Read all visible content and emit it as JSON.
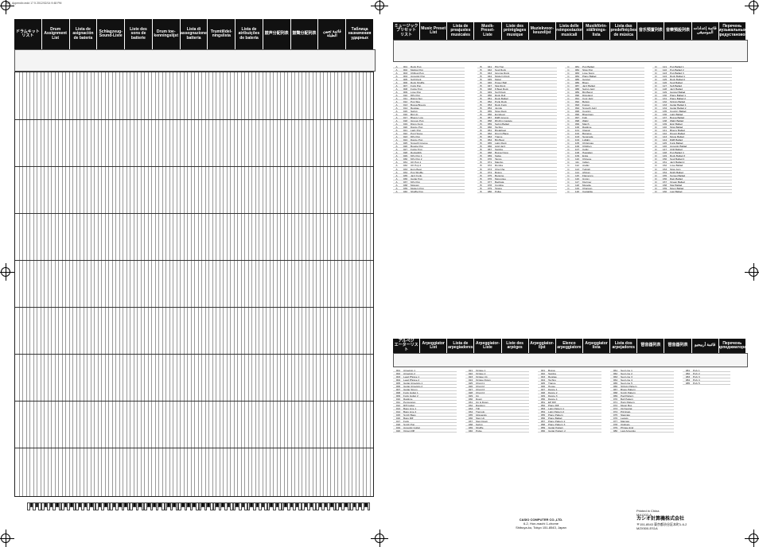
{
  "file_label": "MZ_Appendix.indd  17  5  2012/02/14  9:48 PM",
  "left_header": [
    "ドラムキット\nリスト",
    "Drum\nAssignment\nList",
    "Lista de\nasignación\nde batería",
    "Schlagzeug-\nSound-Liste",
    "Liste des\nsons de\nbatterie",
    "Drum toe-\nkenningslijst",
    "Lista di\nassegnazione\nbatteria",
    "Trumtilldel-\nningslista",
    "Lista de\natribuições\nde bateria",
    "鼓声分配列表",
    "鼓聲分配列表",
    "قائمة تعيين الطبلة",
    "Таблица\nназначения\nударных"
  ],
  "music_header": [
    "ミュージック\nプリセット\nリスト",
    "Music Preset\nList",
    "Lista de\npreajustes\nmusicales",
    "Musik-Preset-\nListe",
    "Liste des\npréréglages\nmusique",
    "Muziekvoor-\nkeuzelijst",
    "Lista delle\npreimpostazioni\nmusicali",
    "Musikförin-\nställnings-\nlista",
    "Lista das\npredefinições\nde música",
    "音乐预置列表",
    "音樂預設列表",
    "قائمة إعدادات الموسيقى",
    "Перечень\nмузыкальных\nпредустановок"
  ],
  "arp_header": [
    "アルペジ\nエーターリスト",
    "Arpeggiator\nList",
    "Lista de\narpegiadores",
    "Arpeggiator-\nListe",
    "Liste des\narpèges",
    "Arpeggiator-\nlijst",
    "Elenco\narpeggiatore",
    "Arpeggiator\nlista",
    "Lista dos\narpejadores",
    "琶音器列表",
    "琶音器列表",
    "قائمة أربيجيو",
    "Перечень\nарпеджиатора"
  ],
  "music_list_1": [
    [
      "A",
      "001",
      "Rock Pop"
    ],
    [
      "A",
      "002",
      "Mellow Pop"
    ],
    [
      "A",
      "003",
      "Chillout Pop"
    ],
    [
      "A",
      "004",
      "Acoustic Pop"
    ],
    [
      "A",
      "005",
      "Soft Rock"
    ],
    [
      "A",
      "006",
      "Rock Shuffle"
    ],
    [
      "A",
      "007",
      "Funk Pop"
    ],
    [
      "A",
      "008",
      "Funky Pop"
    ],
    [
      "A",
      "009",
      "Love Pop"
    ],
    [
      "A",
      "010",
      "80's Pop"
    ],
    [
      "A",
      "011",
      "Rising Sun"
    ],
    [
      "A",
      "012",
      "Pop Ska"
    ],
    [
      "A",
      "013",
      "Bossa Breeze"
    ],
    [
      "A",
      "014",
      "Reggae"
    ],
    [
      "A",
      "015",
      "Swing"
    ],
    [
      "A",
      "016",
      "Big Up"
    ],
    [
      "A",
      "017",
      "Bluesy Low"
    ],
    [
      "A",
      "018",
      "Groove Pop"
    ],
    [
      "A",
      "019",
      "Disco Funk"
    ],
    [
      "A",
      "020",
      "Dance Pop"
    ],
    [
      "A",
      "021",
      "Lady Pop"
    ],
    [
      "A",
      "022",
      "Pop House"
    ],
    [
      "A",
      "023",
      "80's Pop"
    ],
    [
      "A",
      "024",
      "Dance Pop"
    ],
    [
      "A",
      "025",
      "Smooth Groove"
    ],
    [
      "A",
      "026",
      "Boogie Pop"
    ],
    [
      "A",
      "027",
      "Funky Pop"
    ],
    [
      "A",
      "028",
      "Rockabilly"
    ],
    [
      "A",
      "029",
      "60's Pop 1"
    ],
    [
      "A",
      "030",
      "60's Pop 2"
    ],
    [
      "A",
      "031",
      "UK Pop 1"
    ],
    [
      "A",
      "032",
      "UK Pop 2"
    ],
    [
      "A",
      "033",
      "Euro Beat"
    ],
    [
      "A",
      "034",
      "Pop Shuffle"
    ],
    [
      "A",
      "035",
      "Jazz Funk"
    ],
    [
      "A",
      "036",
      "Guitar Pop"
    ],
    [
      "A",
      "037",
      "60's Pop"
    ],
    [
      "A",
      "038",
      "Motown"
    ],
    [
      "A",
      "039",
      "Modern Pop"
    ],
    [
      "A",
      "040",
      "Shuffle Pop"
    ]
  ],
  "music_list_2": [
    [
      "B",
      "041",
      "Hip Hop"
    ],
    [
      "B",
      "042",
      "Soul Rock"
    ],
    [
      "B",
      "043",
      "Grunge Rock"
    ],
    [
      "B",
      "044",
      "Modern Rock"
    ],
    [
      "B",
      "045",
      "Metal"
    ],
    [
      "B",
      "046",
      "Power Ball"
    ],
    [
      "B",
      "047",
      "Ska Rock"
    ],
    [
      "B",
      "048",
      "8 Beat Rock"
    ],
    [
      "B",
      "049",
      "Surf Rock"
    ],
    [
      "B",
      "050",
      "Rock Roll"
    ],
    [
      "B",
      "051",
      "Rock Ballad"
    ],
    [
      "B",
      "052",
      "Punk Rock"
    ],
    [
      "B",
      "053",
      "Rock Funk"
    ],
    [
      "B",
      "054",
      "Jungle"
    ],
    [
      "B",
      "055",
      "Slow Rock"
    ],
    [
      "B",
      "056",
      "Eurobeat"
    ],
    [
      "B",
      "057",
      "R&B Groove"
    ],
    [
      "B",
      "058",
      "Rhythm Garage"
    ],
    [
      "B",
      "059",
      "Swing Ballad"
    ],
    [
      "B",
      "060",
      "Techno"
    ],
    [
      "B",
      "061",
      "Breakbeat"
    ],
    [
      "B",
      "062",
      "Drum'n'Bass"
    ],
    [
      "B",
      "063",
      "Trance"
    ],
    [
      "B",
      "064",
      "Big Beat"
    ],
    [
      "B",
      "065",
      "Latin Rock"
    ],
    [
      "B",
      "066",
      "Acid Jazz"
    ],
    [
      "B",
      "067",
      "Samba"
    ],
    [
      "B",
      "068",
      "Bossa Nova"
    ],
    [
      "B",
      "069",
      "Salsa"
    ],
    [
      "B",
      "070",
      "Tango"
    ],
    [
      "B",
      "071",
      "Mambo"
    ],
    [
      "B",
      "072",
      "Rumba"
    ],
    [
      "B",
      "073",
      "Cha Cha"
    ],
    [
      "B",
      "074",
      "Bolero"
    ],
    [
      "B",
      "075",
      "Beguine"
    ],
    [
      "B",
      "076",
      "Merengue"
    ],
    [
      "B",
      "077",
      "Bachata"
    ],
    [
      "B",
      "078",
      "Cumbia"
    ],
    [
      "B",
      "079",
      "Tejano"
    ],
    [
      "B",
      "080",
      "Polka"
    ]
  ],
  "music_list_3": [
    [
      "C",
      "081",
      "Pop Ballad"
    ],
    [
      "C",
      "082",
      "Slow Pop"
    ],
    [
      "C",
      "083",
      "Love Song"
    ],
    [
      "C",
      "084",
      "Piano Ballad"
    ],
    [
      "C",
      "085",
      "Gospel"
    ],
    [
      "C",
      "086",
      "Blues"
    ],
    [
      "C",
      "087",
      "Jazz Ballad"
    ],
    [
      "C",
      "088",
      "Swing Jazz"
    ],
    [
      "C",
      "089",
      "Big Band"
    ],
    [
      "C",
      "090",
      "Dixieland"
    ],
    [
      "C",
      "091",
      "Cool Jazz"
    ],
    [
      "C",
      "092",
      "Bebop"
    ],
    [
      "C",
      "093",
      "Fusion"
    ],
    [
      "C",
      "094",
      "Smooth Jazz"
    ],
    [
      "C",
      "095",
      "Country"
    ],
    [
      "C",
      "096",
      "Bluegrass"
    ],
    [
      "C",
      "097",
      "Folk"
    ],
    [
      "C",
      "098",
      "Waltz"
    ],
    [
      "C",
      "099",
      "March"
    ],
    [
      "C",
      "100",
      "Ragtime"
    ],
    [
      "C",
      "101",
      "Classic"
    ],
    [
      "C",
      "102",
      "Baroque"
    ],
    [
      "C",
      "103",
      "Serenade"
    ],
    [
      "C",
      "104",
      "Lullaby"
    ],
    [
      "C",
      "105",
      "Christmas"
    ],
    [
      "C",
      "106",
      "Children"
    ],
    [
      "C",
      "107",
      "Celtic"
    ],
    [
      "C",
      "108",
      "Hawaiian"
    ],
    [
      "C",
      "109",
      "Enka"
    ],
    [
      "C",
      "110",
      "Chinese"
    ],
    [
      "C",
      "111",
      "Indian"
    ],
    [
      "C",
      "112",
      "Arabic"
    ],
    [
      "C",
      "113",
      "Turkish"
    ],
    [
      "C",
      "114",
      "African"
    ],
    [
      "C",
      "115",
      "Flamenco"
    ],
    [
      "C",
      "116",
      "Gypsy"
    ],
    [
      "C",
      "117",
      "Klezmer"
    ],
    [
      "C",
      "118",
      "Musette"
    ],
    [
      "C",
      "119",
      "Chanson"
    ],
    [
      "C",
      "120",
      "Cantabile"
    ]
  ],
  "music_list_4": [
    [
      "D",
      "121",
      "Pop Ballad 1"
    ],
    [
      "D",
      "122",
      "Pop Ballad 2"
    ],
    [
      "D",
      "123",
      "Pop Ballad 3"
    ],
    [
      "D",
      "124",
      "Rock Ballad 1"
    ],
    [
      "D",
      "125",
      "Rock Ballad 2"
    ],
    [
      "D",
      "126",
      "Soul Ballad"
    ],
    [
      "D",
      "127",
      "Soft Ballad"
    ],
    [
      "D",
      "128",
      "Jazz Ballad"
    ],
    [
      "D",
      "129",
      "Gospel Ballad"
    ],
    [
      "D",
      "130",
      "Piano Ballad 1"
    ],
    [
      "D",
      "131",
      "Piano Ballad 2"
    ],
    [
      "D",
      "132",
      "Strings Ballad"
    ],
    [
      "D",
      "133",
      "Guitar Ballad 1"
    ],
    [
      "D",
      "134",
      "Guitar Ballad 2"
    ],
    [
      "D",
      "135",
      "Country Ballad"
    ],
    [
      "D",
      "136",
      "Latin Ballad"
    ],
    [
      "D",
      "137",
      "Bossa Ballad"
    ],
    [
      "D",
      "138",
      "Waltz Ballad"
    ],
    [
      "D",
      "139",
      "Epic Ballad"
    ],
    [
      "D",
      "140",
      "Slow Ballad"
    ],
    [
      "D",
      "141",
      "Bluesy Ballad"
    ],
    [
      "D",
      "142",
      "Dream Ballad"
    ],
    [
      "D",
      "143",
      "Movie Ballad"
    ],
    [
      "D",
      "144",
      "R&B Ballad"
    ],
    [
      "D",
      "145",
      "Funk Ballad"
    ],
    [
      "D",
      "146",
      "Acoustic Ballad"
    ],
    [
      "D",
      "147",
      "Chill Ballad"
    ],
    [
      "D",
      "148",
      "Pop Ballad 4"
    ],
    [
      "D",
      "149",
      "Rock Ballad 3"
    ],
    [
      "D",
      "150",
      "Soul Ballad 2"
    ],
    [
      "D",
      "151",
      "Jazz Ballad 2"
    ],
    [
      "D",
      "152",
      "Love Ballad"
    ],
    [
      "D",
      "153",
      "Slow Jam"
    ],
    [
      "D",
      "154",
      "Night Ballad"
    ],
    [
      "D",
      "155",
      "Sunset Ballad"
    ],
    [
      "D",
      "156",
      "Rain Ballad"
    ],
    [
      "D",
      "157",
      "Ocean Ballad"
    ],
    [
      "D",
      "158",
      "Star Ballad"
    ],
    [
      "D",
      "159",
      "Moon Ballad"
    ],
    [
      "D",
      "160",
      "Last Ballad"
    ]
  ],
  "arp_list_1": [
    [
      "001",
      "Arpeggio 1"
    ],
    [
      "002",
      "Arpeggio 2"
    ],
    [
      "003",
      "Lead Phrase 1"
    ],
    [
      "004",
      "Lead Phrase 2"
    ],
    [
      "005",
      "Guitar Arpeggio 1"
    ],
    [
      "006",
      "Guitar Arpeggio 2"
    ],
    [
      "007",
      "Guitar Strum"
    ],
    [
      "008",
      "Funk Guitar 1"
    ],
    [
      "009",
      "Funk Guitar 2"
    ],
    [
      "010",
      "Ragtime"
    ],
    [
      "011",
      "Percussion"
    ],
    [
      "012",
      "Riff Guitar"
    ],
    [
      "013",
      "Bass Line 1"
    ],
    [
      "014",
      "Bass Line 2"
    ],
    [
      "015",
      "Synth Bass"
    ],
    [
      "016",
      "Bass Riff"
    ],
    [
      "017",
      "Funk"
    ],
    [
      "018",
      "Synth Pop"
    ],
    [
      "019",
      "Acoustic Guitar"
    ],
    [
      "020",
      "Organ Riff"
    ]
  ],
  "arp_list_2": [
    [
      "021",
      "Octave 1"
    ],
    [
      "022",
      "Octave 2"
    ],
    [
      "023",
      "Octave Up"
    ],
    [
      "024",
      "Octave Down"
    ],
    [
      "025",
      "Chord 1"
    ],
    [
      "026",
      "Chord 2"
    ],
    [
      "027",
      "Chord 3"
    ],
    [
      "028",
      "Chord 4"
    ],
    [
      "029",
      "Up"
    ],
    [
      "030",
      "Down"
    ],
    [
      "031",
      "Up & Down"
    ],
    [
      "032",
      "Random"
    ],
    [
      "033",
      "Trill"
    ],
    [
      "034",
      "Tremolo"
    ],
    [
      "035",
      "Glissando"
    ],
    [
      "036",
      "Step Up"
    ],
    [
      "037",
      "Step Down"
    ],
    [
      "038",
      "Swing"
    ],
    [
      "039",
      "Shuffle"
    ],
    [
      "040",
      "Pulse"
    ]
  ],
  "arp_list_3": [
    [
      "041",
      "Bossa"
    ],
    [
      "042",
      "Samba"
    ],
    [
      "043",
      "Reggae"
    ],
    [
      "044",
      "Techno"
    ],
    [
      "045",
      "Trance"
    ],
    [
      "046",
      "House"
    ],
    [
      "047",
      "Dance 1"
    ],
    [
      "048",
      "Dance 2"
    ],
    [
      "049",
      "Dance 3"
    ],
    [
      "050",
      "Dance 4"
    ],
    [
      "051",
      "EP Riff"
    ],
    [
      "052",
      "Piano Riff"
    ],
    [
      "053",
      "Latin Pattern 1"
    ],
    [
      "054",
      "Latin Pattern 2"
    ],
    [
      "055",
      "Piano Pattern"
    ],
    [
      "056",
      "Piano Ballad"
    ],
    [
      "057",
      "Piano Pattern 2"
    ],
    [
      "058",
      "Piano Pattern 3"
    ],
    [
      "059",
      "Guitar Pattern"
    ],
    [
      "060",
      "Guitar Pattern 2"
    ]
  ],
  "arp_list_4": [
    [
      "061",
      "Seq Line 1"
    ],
    [
      "062",
      "Seq Line 2"
    ],
    [
      "063",
      "Seq Line 3"
    ],
    [
      "064",
      "Seq Line 4"
    ],
    [
      "065",
      "Seq Line 5"
    ],
    [
      "066",
      "Strings Pattern"
    ],
    [
      "067",
      "Brass Pattern"
    ],
    [
      "068",
      "Synth Pattern"
    ],
    [
      "069",
      "Pad Pattern"
    ],
    [
      "070",
      "Bell Pattern"
    ],
    [
      "071",
      "Harp Pattern"
    ],
    [
      "072",
      "Music Box"
    ],
    [
      "073",
      "Orchestral"
    ],
    [
      "074",
      "Pizzicato"
    ],
    [
      "075",
      "Staccato"
    ],
    [
      "076",
      "Legato"
    ],
    [
      "077",
      "Marcato"
    ],
    [
      "078",
      "Ostinato"
    ],
    [
      "079",
      "Phrase End"
    ],
    [
      "080",
      "Last Arpeggio"
    ]
  ],
  "arp_list_5": [
    [
      "081",
      "Poly 1"
    ],
    [
      "082",
      "Poly 2"
    ],
    [
      "083",
      "Poly 3"
    ],
    [
      "084",
      "Poly 4"
    ],
    [
      "085",
      "Poly 5"
    ]
  ],
  "footer": {
    "company": "CASIO COMPUTER CO.,LTD.",
    "address1": "6-2, Hon-machi 1-chome",
    "address2": "Shibuya-ku, Tokyo 151-8543, Japan",
    "printed": "Printed in China",
    "code": "MA1202-A",
    "brand_jp": "カシオ計算機株式会社",
    "address_jp": "〒151-8543 東京都渋谷区本町1-6-2",
    "doc_code": "MZX500-ES1A"
  }
}
